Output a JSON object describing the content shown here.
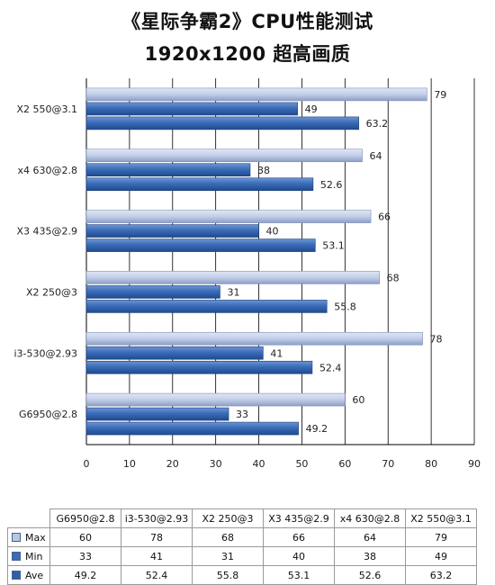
{
  "title_line1": "《星际争霸2》CPU性能测试",
  "title_line2": "1920x1200 超高画质",
  "chart_data": {
    "type": "bar",
    "orientation": "horizontal",
    "categories": [
      "G6950@2.8",
      "i3-530@2.93",
      "X2 250@3",
      "X3 435@2.9",
      "x4 630@2.8",
      "X2 550@3.1"
    ],
    "series": [
      {
        "name": "Max",
        "values": [
          60,
          78,
          68,
          66,
          64,
          79
        ],
        "color": "#b9c7e4"
      },
      {
        "name": "Min",
        "values": [
          33,
          41,
          31,
          40,
          38,
          49
        ],
        "color": "#3a6cb6"
      },
      {
        "name": "Ave",
        "values": [
          49.2,
          52.4,
          55.8,
          53.1,
          52.6,
          63.2
        ],
        "color": "#2e5fa8"
      }
    ],
    "value_labels": {
      "Max": [
        "60",
        "78",
        "68",
        "66",
        "64",
        "79"
      ],
      "Min": [
        "33",
        "41",
        "31",
        "40",
        "38",
        "49"
      ],
      "Ave": [
        "49.2",
        "52.4",
        "55.8",
        "53.1",
        "52.6",
        "63.2"
      ]
    },
    "xlim": [
      0,
      90
    ],
    "xticks": [
      "0",
      "10",
      "20",
      "30",
      "40",
      "50",
      "60",
      "70",
      "80",
      "90"
    ],
    "grid": true,
    "legend": "data-table-below"
  }
}
